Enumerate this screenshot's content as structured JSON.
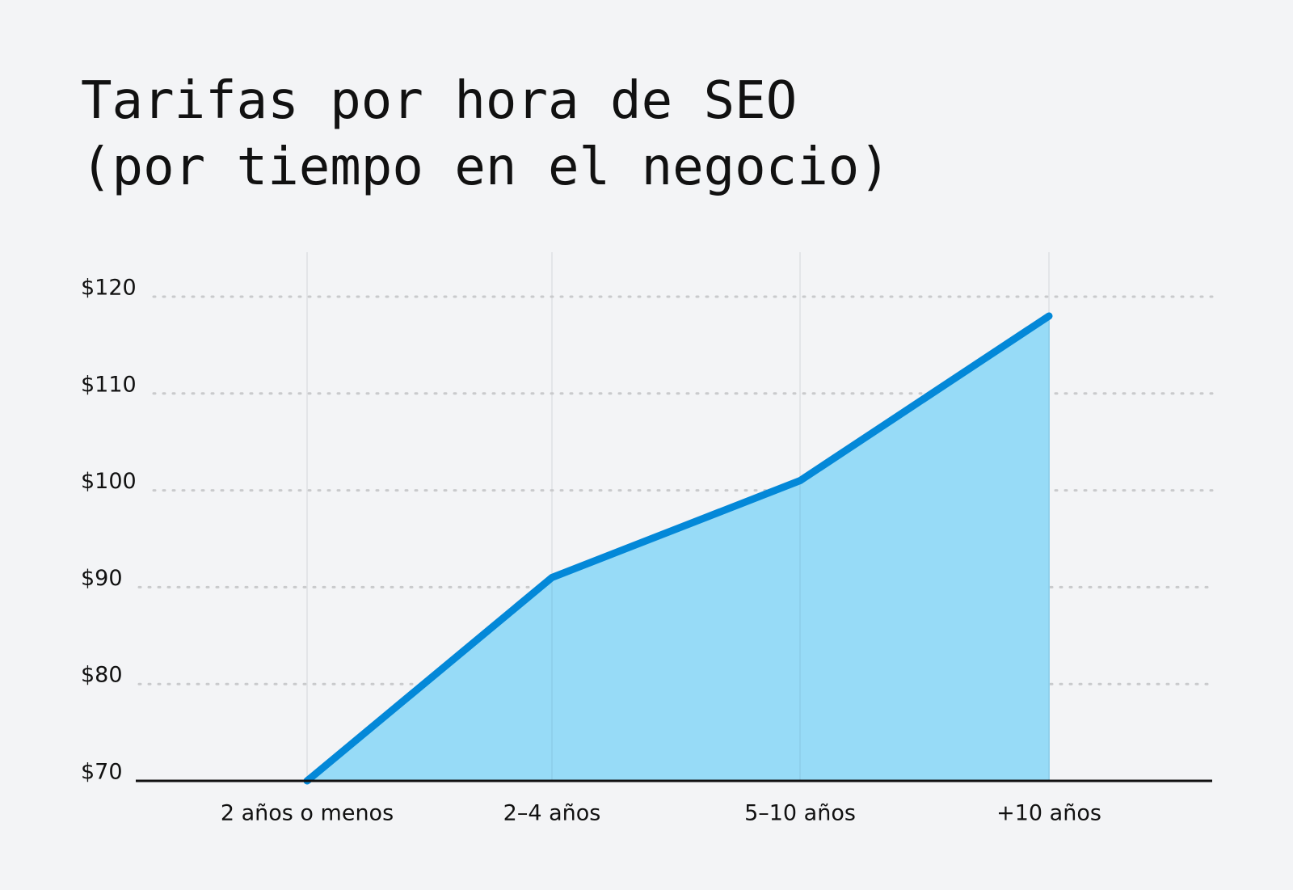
{
  "chart_data": {
    "type": "area",
    "title": [
      "Tarifas por hora de SEO",
      "(por tiempo en el negocio)"
    ],
    "categories": [
      "2 años o menos",
      "2–4 años",
      "5–10 años",
      "+10 años"
    ],
    "values": [
      70,
      91,
      101,
      118
    ],
    "color": "#0388d8",
    "fill_color": "#97dbf7",
    "ylim": [
      70,
      120
    ],
    "yticks": [
      {
        "value": 70,
        "label": "$70"
      },
      {
        "value": 80,
        "label": "$80"
      },
      {
        "value": 90,
        "label": "$90"
      },
      {
        "value": 100,
        "label": "$100"
      },
      {
        "value": 110,
        "label": "$110"
      },
      {
        "value": 120,
        "label": "$120"
      }
    ],
    "grid": true
  }
}
